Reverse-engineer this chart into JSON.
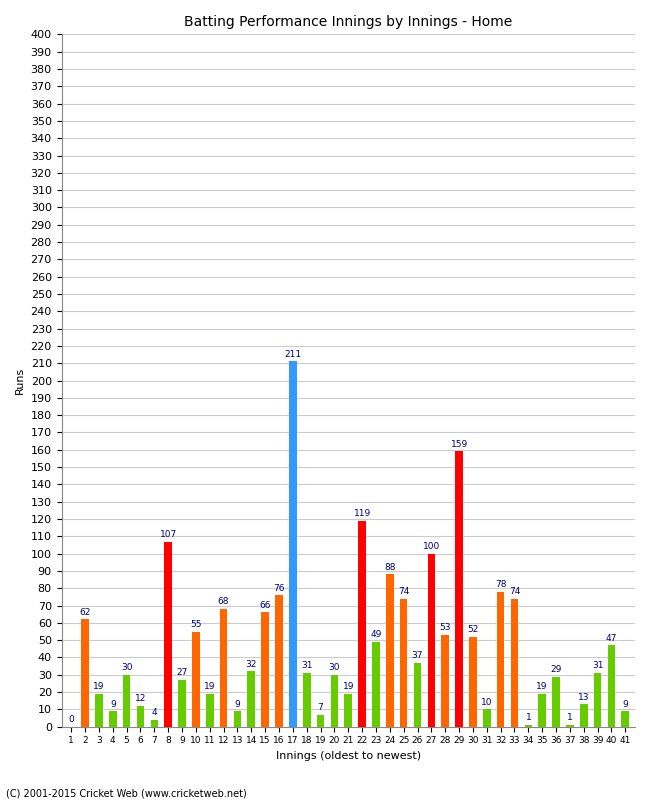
{
  "title": "Batting Performance Innings by Innings - Home",
  "xlabel": "Innings (oldest to newest)",
  "ylabel": "Runs",
  "footer": "(C) 2001-2015 Cricket Web (www.cricketweb.net)",
  "ylim": [
    0,
    400
  ],
  "innings_data": [
    {
      "inn": 1,
      "runs": 0,
      "color": "green"
    },
    {
      "inn": 2,
      "runs": 62,
      "color": "orange"
    },
    {
      "inn": 3,
      "runs": 19,
      "color": "green"
    },
    {
      "inn": 4,
      "runs": 9,
      "color": "green"
    },
    {
      "inn": 5,
      "runs": 30,
      "color": "green"
    },
    {
      "inn": 6,
      "runs": 12,
      "color": "green"
    },
    {
      "inn": 7,
      "runs": 4,
      "color": "green"
    },
    {
      "inn": 8,
      "runs": 107,
      "color": "red"
    },
    {
      "inn": 9,
      "runs": 27,
      "color": "green"
    },
    {
      "inn": 10,
      "runs": 55,
      "color": "orange"
    },
    {
      "inn": 11,
      "runs": 19,
      "color": "green"
    },
    {
      "inn": 12,
      "runs": 68,
      "color": "orange"
    },
    {
      "inn": 13,
      "runs": 9,
      "color": "green"
    },
    {
      "inn": 14,
      "runs": 32,
      "color": "green"
    },
    {
      "inn": 15,
      "runs": 66,
      "color": "orange"
    },
    {
      "inn": 16,
      "runs": 76,
      "color": "orange"
    },
    {
      "inn": 17,
      "runs": 211,
      "color": "blue"
    },
    {
      "inn": 18,
      "runs": 31,
      "color": "green"
    },
    {
      "inn": 19,
      "runs": 7,
      "color": "green"
    },
    {
      "inn": 20,
      "runs": 30,
      "color": "green"
    },
    {
      "inn": 21,
      "runs": 19,
      "color": "green"
    },
    {
      "inn": 22,
      "runs": 119,
      "color": "red"
    },
    {
      "inn": 23,
      "runs": 49,
      "color": "green"
    },
    {
      "inn": 24,
      "runs": 88,
      "color": "orange"
    },
    {
      "inn": 25,
      "runs": 74,
      "color": "orange"
    },
    {
      "inn": 26,
      "runs": 37,
      "color": "green"
    },
    {
      "inn": 27,
      "runs": 100,
      "color": "red"
    },
    {
      "inn": 28,
      "runs": 53,
      "color": "orange"
    },
    {
      "inn": 29,
      "runs": 159,
      "color": "red"
    },
    {
      "inn": 30,
      "runs": 52,
      "color": "orange"
    },
    {
      "inn": 31,
      "runs": 10,
      "color": "green"
    },
    {
      "inn": 32,
      "runs": 78,
      "color": "orange"
    },
    {
      "inn": 33,
      "runs": 74,
      "color": "orange"
    },
    {
      "inn": 34,
      "runs": 1,
      "color": "green"
    },
    {
      "inn": 35,
      "runs": 19,
      "color": "green"
    },
    {
      "inn": 36,
      "runs": 29,
      "color": "green"
    },
    {
      "inn": 37,
      "runs": 1,
      "color": "green"
    },
    {
      "inn": 38,
      "runs": 13,
      "color": "green"
    },
    {
      "inn": 39,
      "runs": 31,
      "color": "green"
    },
    {
      "inn": 40,
      "runs": 47,
      "color": "green"
    },
    {
      "inn": 41,
      "runs": 9,
      "color": "green"
    }
  ],
  "color_map": {
    "green": "#66cc00",
    "orange": "#ff6600",
    "red": "#ff0000",
    "blue": "#3399ff"
  },
  "bg_color": "#ffffff",
  "grid_color": "#cccccc",
  "label_color": "#000080",
  "bar_width": 0.55,
  "label_fontsize": 6.5,
  "axis_fontsize": 8,
  "title_fontsize": 10
}
